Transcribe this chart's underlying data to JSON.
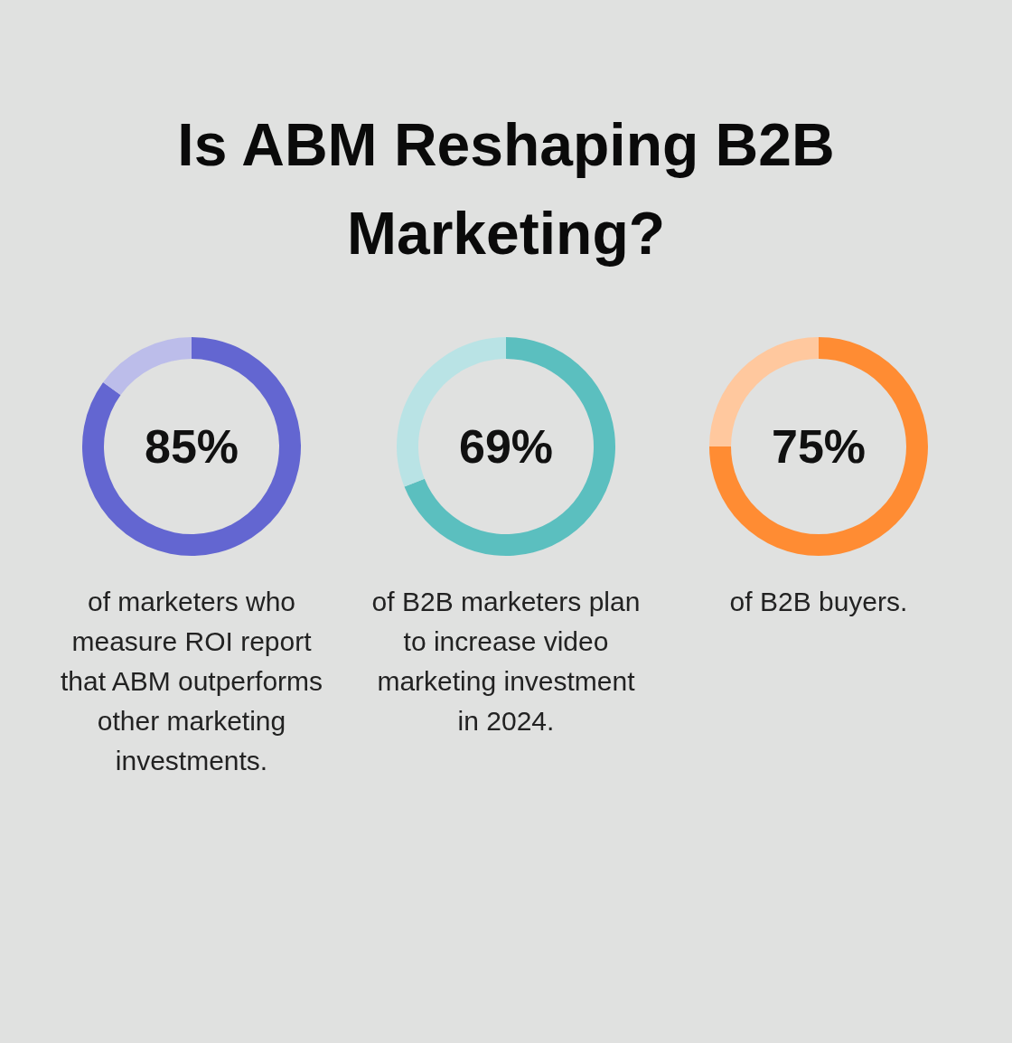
{
  "chart_data": [
    {
      "type": "donut",
      "title": "Is ABM Reshaping B2B Marketing?",
      "categories": [
        null,
        null
      ],
      "values": [
        85,
        15
      ],
      "colors": [
        "#6366d1",
        "#bcbdea"
      ],
      "value_labels": [
        "85%",
        null
      ],
      "annotations": [
        "of marketers who measure ROI report that ABM outperforms other marketing investments."
      ]
    },
    {
      "type": "donut",
      "categories": [
        null,
        null
      ],
      "values": [
        69,
        31
      ],
      "colors": [
        "#5bbfbf",
        "#b9e3e5"
      ],
      "value_labels": [
        "69%",
        null
      ],
      "annotations": [
        "of B2B marketers plan to increase video marketing investment in 2024."
      ]
    },
    {
      "type": "donut",
      "categories": [
        null,
        null
      ],
      "values": [
        75,
        25
      ],
      "colors": [
        "#ff8c33",
        "#ffc89e"
      ],
      "value_labels": [
        "75%",
        null
      ],
      "annotations": [
        "of B2B buyers."
      ]
    }
  ]
}
